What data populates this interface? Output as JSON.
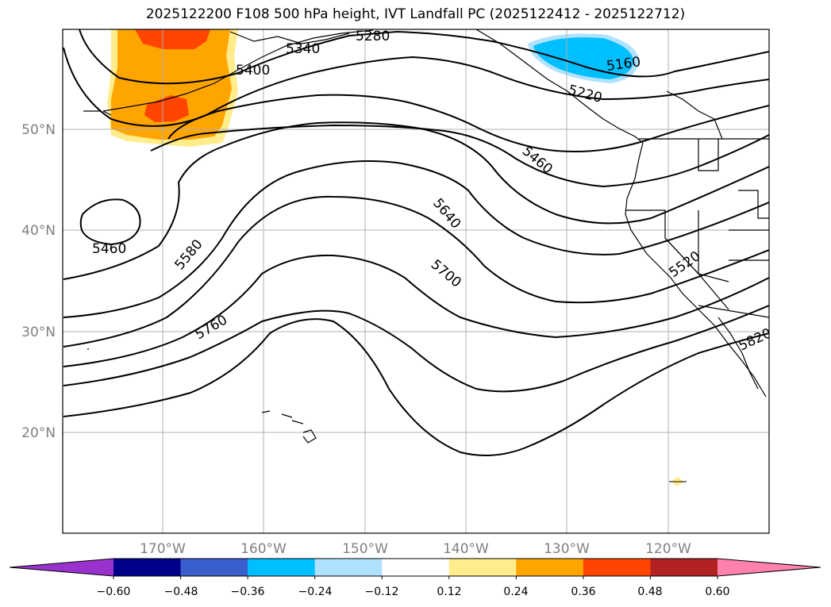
{
  "title": "2025122200 F108 500 hPa height, IVT Landfall PC (2025122412 - 2025122712)",
  "longitude_labels": [
    "170°W",
    "160°W",
    "150°W",
    "140°W",
    "130°W",
    "120°W"
  ],
  "latitude_labels": [
    "50°N",
    "40°N",
    "30°N",
    "20°N"
  ],
  "contour_labels": [
    "5280",
    "5340",
    "5400",
    "5160",
    "5220",
    "5460",
    "5640",
    "5700",
    "5460",
    "5580",
    "5760",
    "5520",
    "5820"
  ],
  "colorbar": {
    "tick_labels": [
      "−0.60",
      "−0.48",
      "−0.36",
      "−0.24",
      "−0.12",
      "0.12",
      "0.24",
      "0.36",
      "0.48",
      "0.60"
    ],
    "colors": [
      "#9932cc",
      "#00008b",
      "#3a5fcd",
      "#00bfff",
      "#b0e2ff",
      "#ffffff",
      "#ffec8b",
      "#ffa500",
      "#ff4500",
      "#b22222",
      "#ff82ab"
    ]
  },
  "colors": {
    "land_outline": "#000000",
    "grid": "#b0b0b0",
    "positive_pc": "#ffa500",
    "negative_pc": "#00bfff"
  }
}
